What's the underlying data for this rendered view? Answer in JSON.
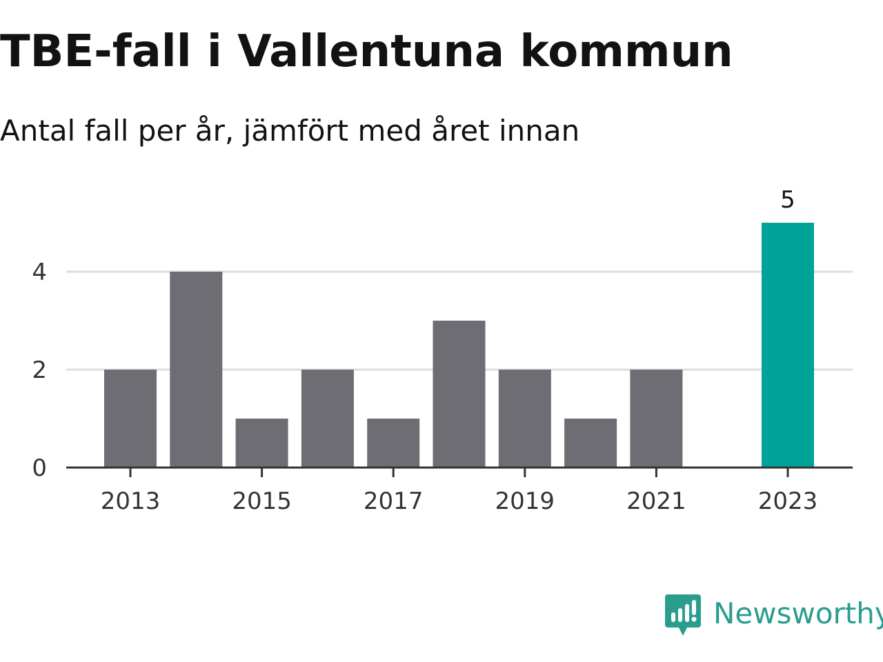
{
  "title": "TBE-fall i Vallentuna kommun",
  "subtitle": "Antal fall per år, jämfört med året innan",
  "brand": {
    "name": "Newsworthy",
    "icon": "newsworthy-logo-icon"
  },
  "colors": {
    "bar": "#6e6d73",
    "highlight": "#00a398",
    "grid": "#dddddd",
    "axis": "#333333",
    "brand": "#2a9d8f"
  },
  "chart_data": {
    "type": "bar",
    "title": "TBE-fall i Vallentuna kommun",
    "subtitle": "Antal fall per år, jämfört med året innan",
    "xlabel": "",
    "ylabel": "",
    "x": [
      2013,
      2014,
      2015,
      2016,
      2017,
      2018,
      2019,
      2020,
      2021,
      2022,
      2023
    ],
    "values": [
      2,
      4,
      1,
      2,
      1,
      3,
      2,
      1,
      2,
      0,
      5
    ],
    "highlight_index": 10,
    "data_labels": [
      {
        "x": 2023,
        "text": "5"
      }
    ],
    "x_ticks": [
      "2013",
      "2015",
      "2017",
      "2019",
      "2021",
      "2023"
    ],
    "y_ticks": [
      "0",
      "2",
      "4"
    ],
    "ylim": [
      0,
      5
    ],
    "grid": true
  }
}
